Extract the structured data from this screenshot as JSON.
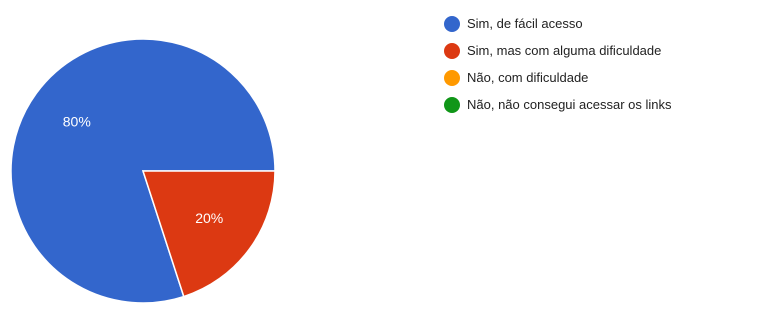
{
  "chart_data": {
    "type": "pie",
    "title": "",
    "categories": [
      "Sim, de fácil acesso",
      "Sim, mas com alguma dificuldade",
      "Não, com dificuldade",
      "Não, não consegui acessar os links"
    ],
    "values": [
      80,
      20,
      0,
      0
    ],
    "data_labels": [
      "80%",
      "20%",
      "",
      ""
    ],
    "colors": [
      "#3366cc",
      "#dc3912",
      "#ff9900",
      "#109618"
    ],
    "legend_position": "right"
  }
}
